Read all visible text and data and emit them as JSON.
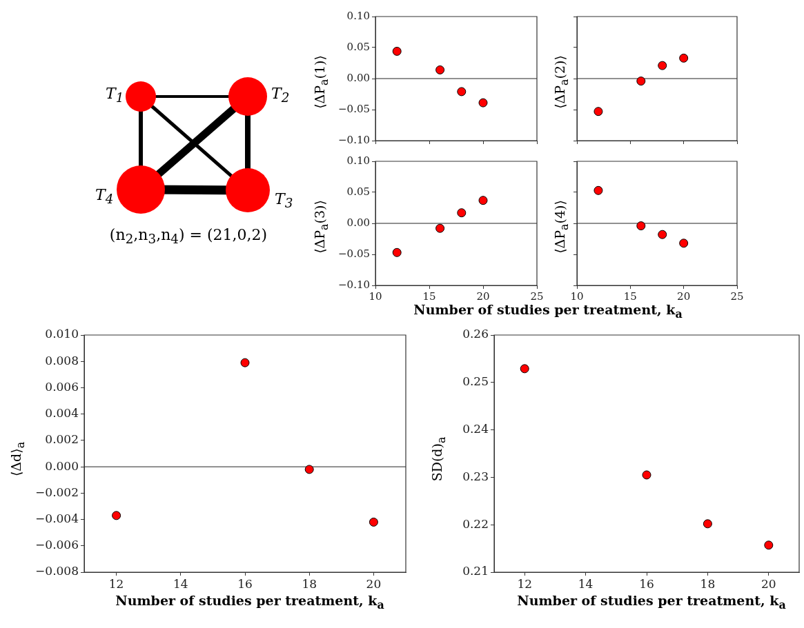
{
  "chart_data": [
    {
      "type": "other",
      "annotations": [
        "T$_{1}$",
        "T$_{2}$",
        "T$_{3}$",
        "T$_{4}$",
        "(n$_{2}$,n$_{3}$,n$_{4}$) = (21,0,2)"
      ]
    },
    {
      "type": "scatter",
      "x": [
        12,
        16,
        18,
        20
      ],
      "values": [
        0.044,
        0.014,
        -0.021,
        -0.039
      ],
      "color": "#ff0000",
      "marker": "circle",
      "ylabel": "⟨ΔP$_{a}$(1)⟩",
      "xlim": [
        10,
        25
      ],
      "xticks": [
        {
          "value": 10,
          "label": null
        },
        {
          "value": 15,
          "label": null
        },
        {
          "value": 20,
          "label": null
        },
        {
          "value": 25,
          "label": null
        }
      ],
      "ylim": [
        -0.1,
        0.1
      ],
      "yticks": [
        {
          "value": -0.1,
          "label": "−0.10"
        },
        {
          "value": -0.05,
          "label": "−0.05"
        },
        {
          "value": 0,
          "label": "0.00"
        },
        {
          "value": 0.05,
          "label": "0.05"
        },
        {
          "value": 0.1,
          "label": "0.10"
        }
      ],
      "ref_lines": [
        {
          "axis": "y",
          "value": 0
        }
      ],
      "tick_labels": "y"
    },
    {
      "type": "scatter",
      "x": [
        12,
        16,
        18,
        20
      ],
      "values": [
        -0.053,
        -0.004,
        0.021,
        0.033
      ],
      "color": "#ff0000",
      "marker": "circle",
      "ylabel": "⟨ΔP$_{a}$(2)⟩",
      "xlim": [
        10,
        25
      ],
      "xticks": [
        {
          "value": 10,
          "label": null
        },
        {
          "value": 15,
          "label": null
        },
        {
          "value": 20,
          "label": null
        },
        {
          "value": 25,
          "label": null
        }
      ],
      "ylim": [
        -0.1,
        0.1
      ],
      "yticks": [
        {
          "value": -0.1,
          "label": null
        },
        {
          "value": -0.05,
          "label": null
        },
        {
          "value": 0,
          "label": null
        },
        {
          "value": 0.05,
          "label": null
        },
        {
          "value": 0.1,
          "label": null
        }
      ],
      "ref_lines": [
        {
          "axis": "y",
          "value": 0
        }
      ],
      "tick_labels": false
    },
    {
      "type": "scatter",
      "x": [
        12,
        16,
        18,
        20
      ],
      "values": [
        -0.047,
        -0.008,
        0.017,
        0.037
      ],
      "color": "#ff0000",
      "marker": "circle",
      "ylabel": "⟨ΔP$_{a}$(3)⟩",
      "xlabel": "Number of studies per treatment, k$_{a}$",
      "xlim": [
        10,
        25
      ],
      "xticks": [
        10,
        15,
        20,
        25
      ],
      "ylim": [
        -0.1,
        0.1
      ],
      "yticks": [
        {
          "value": -0.1,
          "label": "−0.10"
        },
        {
          "value": -0.05,
          "label": "−0.05"
        },
        {
          "value": 0,
          "label": "0.00"
        },
        {
          "value": 0.05,
          "label": "0.05"
        },
        {
          "value": 0.1,
          "label": "0.10"
        }
      ],
      "ref_lines": [
        {
          "axis": "y",
          "value": 0
        }
      ]
    },
    {
      "type": "scatter",
      "x": [
        12,
        16,
        18,
        20
      ],
      "values": [
        0.053,
        -0.004,
        -0.018,
        -0.032
      ],
      "color": "#ff0000",
      "marker": "circle",
      "ylabel": "⟨ΔP$_{a}$(4)⟩",
      "xlim": [
        10,
        25
      ],
      "xticks": [
        10,
        15,
        20,
        25
      ],
      "ylim": [
        -0.1,
        0.1
      ],
      "yticks": [
        {
          "value": -0.1,
          "label": null
        },
        {
          "value": -0.05,
          "label": null
        },
        {
          "value": 0,
          "label": null
        },
        {
          "value": 0.05,
          "label": null
        },
        {
          "value": 0.1,
          "label": null
        }
      ],
      "ref_lines": [
        {
          "axis": "y",
          "value": 0
        }
      ],
      "tick_labels": "x"
    },
    {
      "type": "scatter",
      "x": [
        12,
        16,
        18,
        20
      ],
      "values": [
        -0.0037,
        0.0079,
        -0.0002,
        -0.0042
      ],
      "color": "#ff0000",
      "marker": "circle",
      "ylabel": "⟨Δd⟩$_{a}$",
      "xlabel": "Number of studies per treatment, k$_{a}$",
      "xlim": [
        11,
        21
      ],
      "xticks": [
        12,
        14,
        16,
        18,
        20
      ],
      "ylim": [
        -0.008,
        0.01
      ],
      "yticks": [
        {
          "value": -0.008,
          "label": "−0.008"
        },
        {
          "value": -0.006,
          "label": "−0.006"
        },
        {
          "value": -0.004,
          "label": "−0.004"
        },
        {
          "value": -0.002,
          "label": "−0.002"
        },
        {
          "value": 0,
          "label": "0.000"
        },
        {
          "value": 0.002,
          "label": "0.002"
        },
        {
          "value": 0.004,
          "label": "0.004"
        },
        {
          "value": 0.006,
          "label": "0.006"
        },
        {
          "value": 0.008,
          "label": "0.008"
        },
        {
          "value": 0.01,
          "label": "0.010"
        }
      ],
      "ref_lines": [
        {
          "axis": "y",
          "value": 0
        }
      ]
    },
    {
      "type": "scatter",
      "x": [
        12,
        16,
        18,
        20
      ],
      "values": [
        0.2529,
        0.2305,
        0.2202,
        0.2157
      ],
      "color": "#ff0000",
      "marker": "circle",
      "ylabel": "SD(d)$_{a}$",
      "xlabel": "Number of studies per treatment, k$_{a}$",
      "xlim": [
        11,
        21
      ],
      "xticks": [
        12,
        14,
        16,
        18,
        20
      ],
      "ylim": [
        0.21,
        0.26
      ],
      "yticks": [
        0.21,
        0.22,
        0.23,
        0.24,
        0.25,
        0.26
      ]
    }
  ]
}
